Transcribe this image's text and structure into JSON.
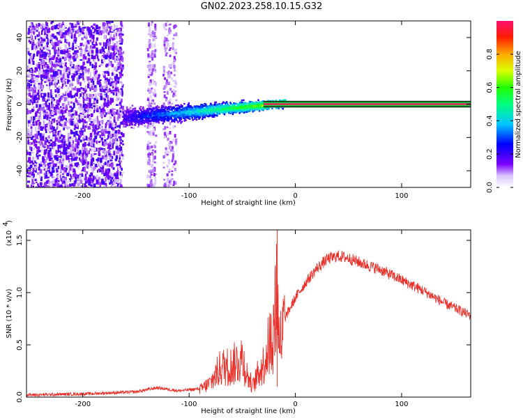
{
  "title": "GN02.2023.258.10.15.G32",
  "colors": {
    "snr_line": "#e8302a",
    "frame": "#000000"
  },
  "chart_data": [
    {
      "type": "heatmap",
      "name": "spectrogram",
      "xlabel": "Height of straight line (km)",
      "ylabel": "Frequency (Hz)",
      "xlim": [
        -253,
        165
      ],
      "ylim": [
        -50,
        50
      ],
      "xticks": [
        -200,
        -100,
        0,
        100
      ],
      "yticks": [
        -40,
        -20,
        0,
        20,
        40
      ],
      "colorbar": {
        "label": "Normalized spectral amplitude",
        "range": [
          0,
          1
        ],
        "ticks": [
          0.0,
          0.2,
          0.4,
          0.6,
          0.8
        ]
      },
      "features": [
        {
          "x_range": [
            -253,
            -163
          ],
          "freq_range": [
            -50,
            50
          ],
          "amplitude": "low (scattered)"
        },
        {
          "x_range": [
            -163,
            -10
          ],
          "freq_center_start": -8,
          "freq_center_end": 1,
          "amplitude": "rising"
        },
        {
          "x_range": [
            -30,
            165
          ],
          "freq_center": 0,
          "amplitude": "high (0.8-1.0)"
        }
      ]
    },
    {
      "type": "line",
      "name": "snr",
      "xlabel": "Height of straight line (km)",
      "ylabel": "SNR (10 * v/v)",
      "y_scale_label": "(x10",
      "y_scale_exponent": "4",
      "xlim": [
        -253,
        165
      ],
      "ylim": [
        0.0,
        1.6
      ],
      "xticks": [
        -200,
        -100,
        0,
        100
      ],
      "yticks": [
        0.0,
        0.5,
        1.0,
        1.5
      ],
      "ytick_labels": [
        "0.0",
        "0.5",
        "1.0",
        "1.5"
      ],
      "series": [
        {
          "name": "SNR",
          "x": [
            -253,
            -200,
            -150,
            -130,
            -110,
            -90,
            -80,
            -70,
            -60,
            -50,
            -45,
            -40,
            -35,
            -30,
            -25,
            -20,
            -17,
            -15,
            -10,
            0,
            10,
            20,
            30,
            40,
            50,
            60,
            80,
            100,
            120,
            140,
            165
          ],
          "y": [
            0.02,
            0.03,
            0.05,
            0.09,
            0.06,
            0.08,
            0.15,
            0.32,
            0.33,
            0.42,
            0.22,
            0.12,
            0.25,
            0.35,
            0.55,
            0.72,
            1.45,
            0.55,
            0.75,
            0.95,
            1.1,
            1.23,
            1.32,
            1.35,
            1.33,
            1.29,
            1.22,
            1.12,
            1.02,
            0.9,
            0.78
          ]
        }
      ]
    }
  ]
}
